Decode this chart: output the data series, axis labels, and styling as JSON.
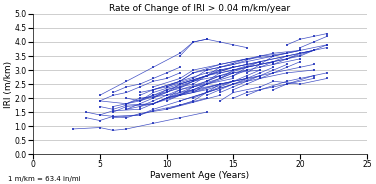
{
  "title": "Rate of Change of IRI > 0.04 m/km/year",
  "xlabel": "Pavement Age (Years)",
  "ylabel": "IRI (m/km)",
  "footnote": "1 m/km = 63.4 in/mi",
  "xlim": [
    0,
    25
  ],
  "ylim": [
    0.0,
    5.0
  ],
  "yticks": [
    0.0,
    0.5,
    1.0,
    1.5,
    2.0,
    2.5,
    3.0,
    3.5,
    4.0,
    4.5,
    5.0
  ],
  "xticks": [
    0,
    5,
    10,
    15,
    20,
    25
  ],
  "line_color": "#2233bb",
  "sections": [
    {
      "x": [
        3,
        5,
        6,
        7,
        9,
        11,
        13
      ],
      "y": [
        0.9,
        0.95,
        0.85,
        0.9,
        1.1,
        1.3,
        1.5
      ]
    },
    {
      "x": [
        4,
        5,
        6,
        8,
        9,
        11,
        13
      ],
      "y": [
        1.3,
        1.2,
        1.35,
        1.4,
        1.55,
        1.75,
        2.0
      ]
    },
    {
      "x": [
        4,
        5,
        7,
        8,
        10,
        12,
        14
      ],
      "y": [
        1.5,
        1.4,
        1.3,
        1.45,
        1.6,
        1.85,
        2.1
      ]
    },
    {
      "x": [
        5,
        6,
        7,
        9,
        10,
        12,
        14
      ],
      "y": [
        1.7,
        1.6,
        1.75,
        1.8,
        2.0,
        2.2,
        2.5
      ]
    },
    {
      "x": [
        5,
        6,
        8,
        9,
        11,
        13,
        15
      ],
      "y": [
        1.4,
        1.55,
        1.6,
        1.8,
        2.1,
        2.3,
        2.6
      ]
    },
    {
      "x": [
        5,
        7,
        8,
        10,
        11,
        13,
        15
      ],
      "y": [
        1.9,
        1.8,
        2.0,
        2.1,
        2.3,
        2.5,
        2.7
      ]
    },
    {
      "x": [
        6,
        7,
        9,
        10,
        12,
        14,
        16
      ],
      "y": [
        1.5,
        1.7,
        1.8,
        2.0,
        2.25,
        2.5,
        2.7
      ]
    },
    {
      "x": [
        6,
        8,
        9,
        11,
        12,
        14,
        16
      ],
      "y": [
        1.7,
        1.9,
        2.1,
        2.35,
        2.6,
        2.8,
        3.0
      ]
    },
    {
      "x": [
        7,
        8,
        9,
        11,
        13,
        15
      ],
      "y": [
        2.0,
        1.9,
        2.2,
        2.5,
        2.8,
        3.1
      ]
    },
    {
      "x": [
        7,
        9,
        10,
        12,
        14,
        16
      ],
      "y": [
        1.8,
        2.1,
        2.3,
        2.6,
        3.0,
        3.2
      ]
    },
    {
      "x": [
        8,
        9,
        11,
        12,
        14,
        16
      ],
      "y": [
        2.1,
        2.3,
        2.6,
        2.9,
        3.2,
        3.4
      ]
    },
    {
      "x": [
        8,
        10,
        11,
        13,
        15,
        17
      ],
      "y": [
        1.9,
        2.2,
        2.5,
        2.8,
        3.1,
        3.3
      ]
    },
    {
      "x": [
        9,
        10,
        12,
        13,
        15,
        17
      ],
      "y": [
        2.0,
        2.3,
        2.5,
        2.8,
        3.0,
        3.3
      ]
    },
    {
      "x": [
        9,
        11,
        12,
        14,
        16,
        18
      ],
      "y": [
        2.3,
        2.6,
        2.9,
        3.1,
        3.4,
        3.5
      ]
    },
    {
      "x": [
        10,
        11,
        13,
        14,
        16,
        18
      ],
      "y": [
        2.0,
        2.3,
        2.6,
        2.9,
        3.1,
        3.3
      ]
    },
    {
      "x": [
        10,
        12,
        13,
        15,
        17,
        19
      ],
      "y": [
        2.4,
        2.7,
        3.0,
        3.2,
        3.5,
        3.6
      ]
    },
    {
      "x": [
        11,
        12,
        14,
        15,
        17
      ],
      "y": [
        2.1,
        2.4,
        2.7,
        2.9,
        3.0
      ]
    },
    {
      "x": [
        11,
        13,
        14,
        16,
        18,
        20
      ],
      "y": [
        2.5,
        2.8,
        3.1,
        3.3,
        3.5,
        3.7
      ]
    },
    {
      "x": [
        12,
        13,
        15,
        16,
        18,
        20
      ],
      "y": [
        2.2,
        2.5,
        2.8,
        3.0,
        3.2,
        3.4
      ]
    },
    {
      "x": [
        10,
        12,
        13,
        15,
        17,
        19,
        21
      ],
      "y": [
        1.6,
        1.9,
        2.2,
        2.5,
        2.7,
        2.9,
        3.0
      ]
    },
    {
      "x": [
        5,
        7,
        9,
        11,
        12,
        13
      ],
      "y": [
        2.1,
        2.6,
        3.1,
        3.6,
        4.0,
        4.1
      ]
    },
    {
      "x": [
        11,
        13,
        14,
        16,
        18,
        20,
        21
      ],
      "y": [
        1.9,
        2.2,
        2.5,
        2.7,
        2.9,
        3.1,
        3.2
      ]
    },
    {
      "x": [
        13,
        14,
        16,
        17,
        19,
        21
      ],
      "y": [
        2.6,
        2.8,
        3.1,
        3.3,
        3.5,
        3.7
      ]
    },
    {
      "x": [
        14,
        15,
        17,
        18,
        20,
        22
      ],
      "y": [
        2.7,
        3.0,
        3.2,
        3.5,
        3.7,
        3.9
      ]
    },
    {
      "x": [
        15,
        16,
        18,
        19,
        21
      ],
      "y": [
        2.8,
        3.1,
        3.3,
        3.5,
        3.7
      ]
    },
    {
      "x": [
        16,
        17,
        19,
        20,
        22
      ],
      "y": [
        2.9,
        3.2,
        3.4,
        3.6,
        3.8
      ]
    },
    {
      "x": [
        17,
        18,
        20,
        21
      ],
      "y": [
        3.1,
        3.3,
        3.5,
        3.7
      ]
    },
    {
      "x": [
        18,
        19,
        21,
        22
      ],
      "y": [
        3.2,
        3.4,
        3.7,
        3.9
      ]
    },
    {
      "x": [
        14,
        15,
        17,
        18,
        20,
        22
      ],
      "y": [
        1.9,
        2.2,
        2.4,
        2.6,
        2.5,
        2.7
      ]
    },
    {
      "x": [
        16,
        17,
        19,
        20,
        22
      ],
      "y": [
        2.1,
        2.3,
        2.6,
        2.7,
        2.9
      ]
    },
    {
      "x": [
        18,
        19,
        21
      ],
      "y": [
        2.3,
        2.5,
        2.7
      ]
    },
    {
      "x": [
        15,
        16,
        18,
        19,
        21
      ],
      "y": [
        2.0,
        2.2,
        2.4,
        2.5,
        2.8
      ]
    },
    {
      "x": [
        11,
        12,
        13,
        14,
        15,
        16
      ],
      "y": [
        3.5,
        4.0,
        4.1,
        4.0,
        3.9,
        3.8
      ]
    },
    {
      "x": [
        19,
        20,
        21,
        22
      ],
      "y": [
        3.9,
        4.1,
        4.2,
        4.3
      ]
    },
    {
      "x": [
        20,
        21,
        22
      ],
      "y": [
        3.8,
        4.0,
        4.2
      ]
    },
    {
      "x": [
        5,
        6,
        7,
        8,
        9,
        10,
        11
      ],
      "y": [
        1.9,
        2.1,
        2.2,
        2.4,
        2.6,
        2.7,
        2.9
      ]
    },
    {
      "x": [
        7,
        8,
        9,
        10,
        11,
        12,
        13
      ],
      "y": [
        1.6,
        1.8,
        2.0,
        2.2,
        2.4,
        2.6,
        2.8
      ]
    },
    {
      "x": [
        8,
        9,
        10,
        11,
        12,
        13,
        14
      ],
      "y": [
        1.7,
        1.9,
        2.1,
        2.2,
        2.4,
        2.6,
        2.8
      ]
    },
    {
      "x": [
        6,
        7,
        8,
        9,
        10,
        11
      ],
      "y": [
        2.2,
        2.4,
        2.5,
        2.7,
        2.9,
        3.1
      ]
    },
    {
      "x": [
        9,
        10,
        11,
        12,
        13
      ],
      "y": [
        1.8,
        2.0,
        2.2,
        2.3,
        2.5
      ]
    },
    {
      "x": [
        10,
        11,
        12,
        13,
        14,
        15
      ],
      "y": [
        1.9,
        2.1,
        2.3,
        2.5,
        2.7,
        2.9
      ]
    },
    {
      "x": [
        12,
        13,
        14,
        15,
        16,
        17
      ],
      "y": [
        2.0,
        2.2,
        2.4,
        2.6,
        2.8,
        3.0
      ]
    },
    {
      "x": [
        13,
        14,
        15,
        16,
        17,
        18
      ],
      "y": [
        2.1,
        2.3,
        2.5,
        2.7,
        2.9,
        3.1
      ]
    },
    {
      "x": [
        14,
        15,
        16,
        17,
        18,
        19
      ],
      "y": [
        2.2,
        2.4,
        2.6,
        2.8,
        3.0,
        3.2
      ]
    },
    {
      "x": [
        15,
        16,
        17,
        18,
        19,
        20
      ],
      "y": [
        2.3,
        2.5,
        2.7,
        2.9,
        3.1,
        3.3
      ]
    },
    {
      "x": [
        6,
        8,
        9,
        11,
        13,
        15,
        17
      ],
      "y": [
        1.3,
        1.4,
        1.6,
        1.9,
        2.2,
        2.5,
        2.8
      ]
    },
    {
      "x": [
        7,
        9,
        10,
        12,
        14,
        16
      ],
      "y": [
        1.6,
        1.8,
        2.0,
        2.3,
        2.5,
        2.7
      ]
    },
    {
      "x": [
        8,
        10,
        11,
        13,
        15,
        17,
        19
      ],
      "y": [
        2.2,
        2.4,
        2.6,
        2.9,
        3.1,
        3.3,
        3.5
      ]
    },
    {
      "x": [
        9,
        11,
        12,
        14,
        16,
        18,
        20
      ],
      "y": [
        2.4,
        2.7,
        3.0,
        3.2,
        3.4,
        3.6,
        3.7
      ]
    }
  ]
}
